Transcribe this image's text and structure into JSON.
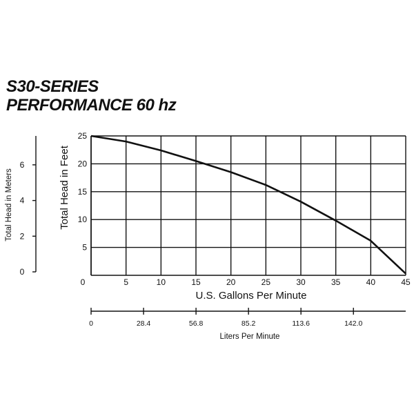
{
  "title": {
    "line1": "S30-SERIES",
    "line2": "PERFORMANCE 60 hz"
  },
  "chart_data": {
    "type": "line",
    "title": "S30-SERIES PERFORMANCE 60 hz",
    "xlabel": "U.S. Gallons Per Minute",
    "ylabel": "Total Head in Feet",
    "xlim": [
      0,
      45
    ],
    "ylim": [
      0,
      25
    ],
    "x_ticks": [
      0,
      5,
      10,
      15,
      20,
      25,
      30,
      35,
      40,
      45
    ],
    "y_ticks": [
      5,
      10,
      15,
      20,
      25
    ],
    "grid": true,
    "series": [
      {
        "x": [
          0,
          5,
          10,
          15,
          20,
          25,
          30,
          35,
          40,
          45
        ],
        "y": [
          25,
          24,
          22.4,
          20.5,
          18.5,
          16.2,
          13.2,
          9.8,
          6.2,
          0.3
        ]
      }
    ],
    "secondary_y_axis": {
      "label": "Total Head in Meters",
      "ticks": [
        {
          "label": "0",
          "value": 0
        },
        {
          "label": "2",
          "value": 2
        },
        {
          "label": "4",
          "value": 4
        },
        {
          "label": "6",
          "value": 6
        }
      ],
      "range": [
        0,
        7.62
      ]
    },
    "secondary_x_axis": {
      "label": "Liters Per Minute",
      "ticks": [
        {
          "label": "0",
          "value": 0
        },
        {
          "label": "28.4",
          "value": 28.4
        },
        {
          "label": "56.8",
          "value": 56.8
        },
        {
          "label": "85.2",
          "value": 85.2
        },
        {
          "label": "113.6",
          "value": 113.6
        },
        {
          "label": "142.0",
          "value": 142.0
        }
      ],
      "range": [
        0,
        170.3
      ]
    }
  }
}
